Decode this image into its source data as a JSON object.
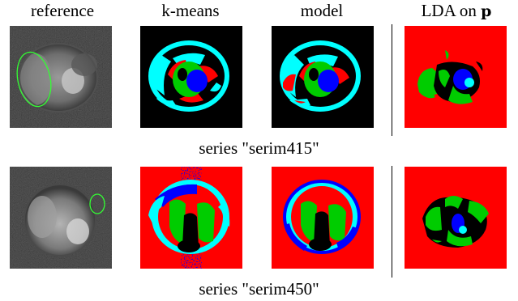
{
  "columns": {
    "reference": "reference",
    "kmeans": "k-means",
    "model": "model",
    "lda_prefix": "LDA on ",
    "lda_var": "p"
  },
  "rows": [
    {
      "caption": "series \"serim415\"",
      "roi": "large-ellipse-left"
    },
    {
      "caption": "series \"serim450\"",
      "roi": "small-ellipse-right"
    }
  ],
  "colors": {
    "red": "#ff0000",
    "green": "#00cc00",
    "blue": "#0000ff",
    "cyan": "#00ffff",
    "black": "#000000",
    "roi_outline": "#33ff33"
  }
}
